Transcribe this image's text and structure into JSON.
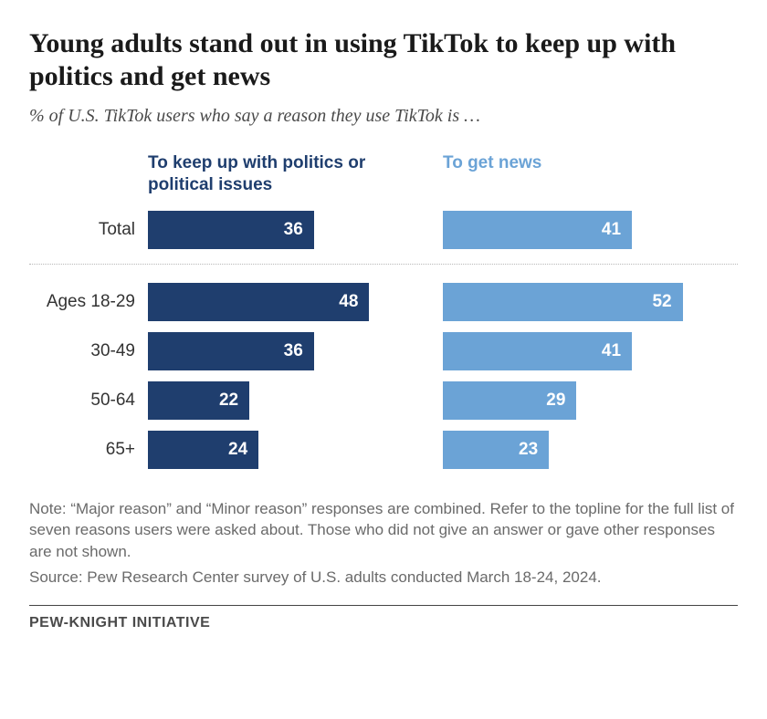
{
  "title": "Young adults stand out in using TikTok to keep up with politics and get news",
  "title_fontsize": 30,
  "title_color": "#1a1a1a",
  "subtitle": "% of U.S. TikTok users who say a reason they use TikTok is …",
  "subtitle_fontsize": 20,
  "subtitle_color": "#4a4a4a",
  "background_color": "#ffffff",
  "max_value": 60,
  "series": [
    {
      "label": "To keep up with politics or political issues",
      "color": "#1f3e6e",
      "header_color": "#1f3e6e"
    },
    {
      "label": "To get news",
      "color": "#6ba3d6",
      "header_color": "#6ba3d6"
    }
  ],
  "header_fontsize": 19,
  "total_row": {
    "label": "Total",
    "values": [
      36,
      41
    ]
  },
  "age_rows": [
    {
      "label": "Ages 18-29",
      "values": [
        48,
        52
      ]
    },
    {
      "label": "30-49",
      "values": [
        36,
        41
      ]
    },
    {
      "label": "50-64",
      "values": [
        22,
        29
      ]
    },
    {
      "label": "65+",
      "values": [
        24,
        23
      ]
    }
  ],
  "row_label_fontsize": 19,
  "row_label_color": "#333333",
  "bar_value_fontsize": 19,
  "bar_value_color": "#ffffff",
  "note": "Note: “Major reason” and “Minor reason” responses are combined. Refer to the topline for the full list of seven reasons users were asked about. Those who did not give an answer or gave other responses are not shown.",
  "source": "Source: Pew Research Center survey of U.S. adults conducted March 18-24, 2024.",
  "note_fontsize": 17,
  "attribution": "PEW-KNIGHT INITIATIVE",
  "attribution_fontsize": 16,
  "divider_color": "#b8b8b8"
}
